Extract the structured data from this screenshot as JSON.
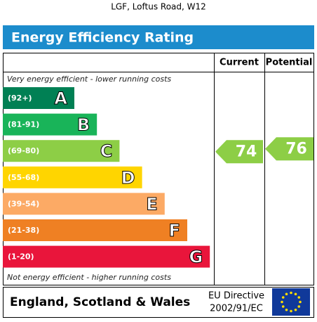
{
  "header": {
    "address": "LGF, Loftus Road, W12",
    "title": "Energy Efficiency Rating"
  },
  "columns": {
    "current": "Current",
    "potential": "Potential"
  },
  "top_note": "Very energy efficient - lower running costs",
  "bottom_note": "Not energy efficient - higher running costs",
  "bands": [
    {
      "range": "(92+)",
      "letter": "A",
      "color": "#008054"
    },
    {
      "range": "(81-91)",
      "letter": "B",
      "color": "#19b459"
    },
    {
      "range": "(69-80)",
      "letter": "C",
      "color": "#8dce46"
    },
    {
      "range": "(55-68)",
      "letter": "D",
      "color": "#ffd500"
    },
    {
      "range": "(39-54)",
      "letter": "E",
      "color": "#fcaa65"
    },
    {
      "range": "(21-38)",
      "letter": "F",
      "color": "#ef8023"
    },
    {
      "range": "(1-20)",
      "letter": "G",
      "color": "#e9153b"
    }
  ],
  "current": {
    "value": 74
  },
  "potential": {
    "value": 76
  },
  "footer": {
    "region": "England, Scotland & Wales",
    "directive_line1": "EU Directive",
    "directive_line2": "2002/91/EC"
  }
}
